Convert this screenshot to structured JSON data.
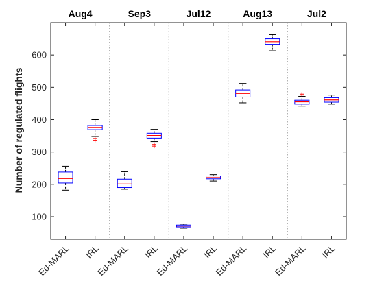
{
  "chart_data": {
    "type": "box",
    "title": "",
    "xlabel": "",
    "ylabel": "Number of regulated flights",
    "ylim": [
      30,
      700
    ],
    "yticks": [
      100,
      200,
      300,
      400,
      500,
      600
    ],
    "grid": false,
    "legend": "none",
    "groups": [
      {
        "name": "Aug4",
        "boxes": [
          {
            "label": "Ed-MARL",
            "whisker_low": 182,
            "q1": 204,
            "median": 218,
            "q3": 238,
            "whisker_high": 256,
            "outliers": []
          },
          {
            "label": "IRL",
            "whisker_low": 348,
            "q1": 369,
            "median": 376,
            "q3": 382,
            "whisker_high": 400,
            "outliers": [
              342,
              336
            ]
          }
        ]
      },
      {
        "name": "Sep3",
        "boxes": [
          {
            "label": "Ed-MARL",
            "whisker_low": 185,
            "q1": 190,
            "median": 201,
            "q3": 216,
            "whisker_high": 239,
            "outliers": []
          },
          {
            "label": "IRL",
            "whisker_low": 332,
            "q1": 343,
            "median": 351,
            "q3": 358,
            "whisker_high": 370,
            "outliers": [
              323,
              318
            ]
          }
        ]
      },
      {
        "name": "Jul12",
        "boxes": [
          {
            "label": "Ed-MARL",
            "whisker_low": 64,
            "q1": 68,
            "median": 71,
            "q3": 74,
            "whisker_high": 77,
            "outliers": []
          },
          {
            "label": "IRL",
            "whisker_low": 210,
            "q1": 217,
            "median": 221,
            "q3": 226,
            "whisker_high": 230,
            "outliers": []
          }
        ]
      },
      {
        "name": "Aug13",
        "boxes": [
          {
            "label": "Ed-MARL",
            "whisker_low": 452,
            "q1": 470,
            "median": 481,
            "q3": 492,
            "whisker_high": 512,
            "outliers": []
          },
          {
            "label": "IRL",
            "whisker_low": 613,
            "q1": 633,
            "median": 641,
            "q3": 650,
            "whisker_high": 663,
            "outliers": []
          }
        ]
      },
      {
        "name": "Jul2",
        "boxes": [
          {
            "label": "Ed-MARL",
            "whisker_low": 442,
            "q1": 448,
            "median": 455,
            "q3": 460,
            "whisker_high": 472,
            "outliers": [
              476,
              479
            ]
          },
          {
            "label": "IRL",
            "whisker_low": 448,
            "q1": 454,
            "median": 461,
            "q3": 468,
            "whisker_high": 476,
            "outliers": []
          }
        ]
      }
    ],
    "colors": {
      "box": "#0000ff",
      "median": "#ff0000",
      "whisker": "#000000",
      "outlier": "#ff0000",
      "separator": "#000000",
      "axis": "#262626"
    }
  }
}
